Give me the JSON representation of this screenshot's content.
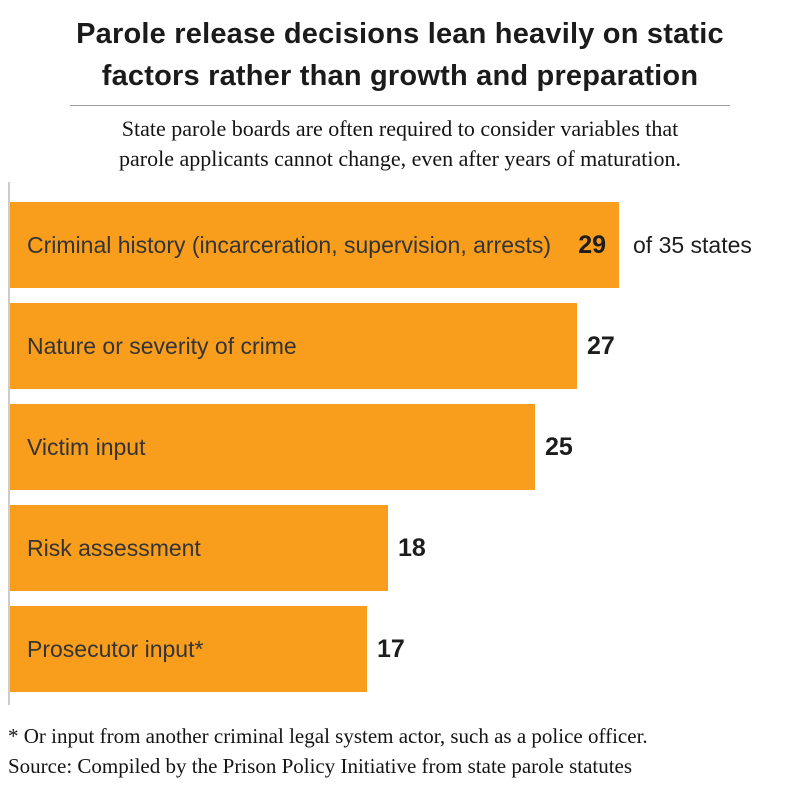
{
  "header": {
    "title": "Parole release decisions lean heavily on static factors rather than growth and preparation",
    "title_lines": [
      "Parole release decisions lean heavily on static",
      "factors rather than growth and preparation"
    ],
    "subtitle": "State parole boards are often required to consider variables that parole applicants cannot change, even after years of maturation.",
    "subtitle_lines": [
      "State parole boards are often required to consider variables that",
      "parole applicants cannot change, even after years of maturation."
    ]
  },
  "chart_data": {
    "type": "bar",
    "orientation": "horizontal",
    "title": "Parole release decisions lean heavily on static factors rather than growth and preparation",
    "categories": [
      "Criminal history (incarceration, supervision, arrests)",
      "Nature or severity of crime",
      "Victim input",
      "Risk assessment",
      "Prosecutor input*"
    ],
    "values": [
      29,
      27,
      25,
      18,
      17
    ],
    "suffix_labels": [
      "of 35 states",
      "",
      "",
      "",
      ""
    ],
    "xlim": [
      0,
      35
    ],
    "grid": "off",
    "legend": "none",
    "bar_color": "#F99D1C",
    "value_label_position": [
      "inside",
      "outside",
      "outside",
      "outside",
      "outside"
    ]
  },
  "footer": {
    "footnote": "* Or input from another criminal legal system actor, such as a police officer.",
    "source": "Source: Compiled by the Prison Policy Initiative from state parole statutes"
  },
  "colors": {
    "bar": "#F99D1C",
    "title_text": "#1b1b1b",
    "bar_label_text": "#343434",
    "axis_line": "#cccccc",
    "divider": "#9b9b9b"
  }
}
